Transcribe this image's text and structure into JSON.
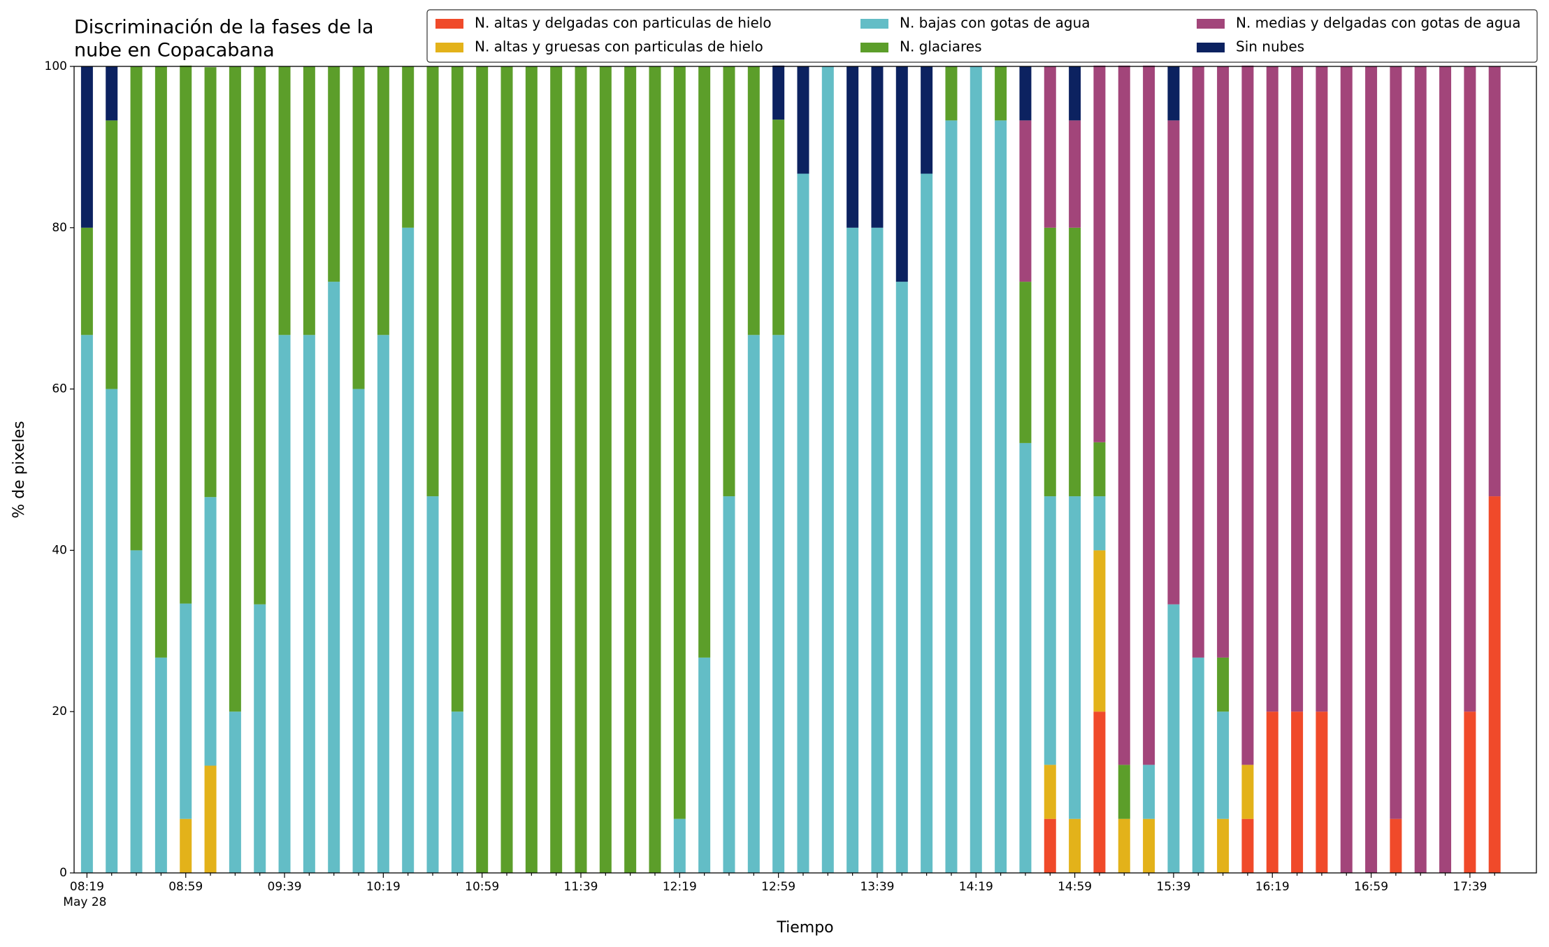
{
  "chart_data": {
    "type": "stacked_bar",
    "title": [
      "Discriminación de la fases de la",
      "nube en Copacabana"
    ],
    "x_label": "Tiempo",
    "y_label": "% de pixeles",
    "date_label": "May 28",
    "categories": [
      "08:19",
      null,
      null,
      null,
      "08:59",
      null,
      null,
      null,
      "09:39",
      null,
      null,
      null,
      "10:19",
      null,
      null,
      null,
      "10:59",
      null,
      null,
      null,
      "11:39",
      null,
      null,
      null,
      "12:19",
      null,
      null,
      null,
      "12:59",
      null,
      null,
      null,
      "13:39",
      null,
      null,
      null,
      "14:19",
      null,
      null,
      null,
      "14:59",
      null,
      null,
      null,
      "15:39",
      null,
      null,
      null,
      "16:19",
      null,
      null,
      null,
      "16:59",
      null,
      null,
      null,
      "17:39",
      null
    ],
    "ylim": [
      0,
      100
    ],
    "yticks": [
      0,
      20,
      40,
      60,
      80,
      100
    ],
    "legend": "top-right",
    "series": [
      {
        "name": "N. altas y delgadas con particulas de hielo",
        "color": "#f04a2a",
        "values": [
          0,
          0,
          0,
          0,
          0,
          0,
          0,
          0,
          0,
          0,
          0,
          0,
          0,
          0,
          0,
          0,
          0,
          0,
          0,
          0,
          0,
          0,
          0,
          0,
          0,
          0,
          0,
          0,
          0,
          0,
          0,
          0,
          0,
          0,
          0,
          0,
          0,
          0,
          0,
          6.7,
          0,
          20,
          0,
          0,
          0,
          0,
          0,
          6.7,
          20,
          20,
          20,
          0,
          0,
          6.7,
          0,
          0,
          20,
          46.7
        ]
      },
      {
        "name": "N. altas y gruesas con particulas de hielo",
        "color": "#e3b21a",
        "values": [
          0,
          0,
          0,
          0,
          6.7,
          13.3,
          0,
          0,
          0,
          0,
          0,
          0,
          0,
          0,
          0,
          0,
          0,
          0,
          0,
          0,
          0,
          0,
          0,
          0,
          0,
          0,
          0,
          0,
          0,
          0,
          0,
          0,
          0,
          0,
          0,
          0,
          0,
          0,
          0,
          6.7,
          6.7,
          20,
          6.7,
          6.7,
          0,
          0,
          6.7,
          6.7,
          0,
          0,
          0,
          0,
          0,
          0,
          0,
          0,
          0,
          0
        ]
      },
      {
        "name": "N. bajas con gotas de agua",
        "color": "#63bdc6",
        "values": [
          66.7,
          60,
          40,
          26.7,
          26.7,
          33.3,
          20,
          33.3,
          66.7,
          66.7,
          73.3,
          60,
          66.7,
          80,
          46.7,
          20,
          0,
          0,
          0,
          0,
          0,
          0,
          0,
          0,
          6.7,
          26.7,
          46.7,
          66.7,
          66.7,
          86.7,
          100,
          80,
          80,
          73.3,
          86.7,
          93.3,
          100,
          93.3,
          53.3,
          33.3,
          40,
          6.7,
          0,
          6.7,
          33.3,
          26.7,
          13.3,
          0,
          0,
          0,
          0,
          0,
          0,
          0,
          0,
          0,
          0,
          0
        ]
      },
      {
        "name": "N. glaciares",
        "color": "#5c9e2a",
        "values": [
          13.3,
          33.3,
          60,
          73.3,
          66.7,
          53.3,
          80,
          66.7,
          33.3,
          33.3,
          26.7,
          40,
          33.3,
          20,
          53.3,
          80,
          100,
          100,
          100,
          100,
          100,
          100,
          100,
          100,
          93.3,
          73.3,
          53.3,
          33.3,
          26.7,
          0,
          0,
          0,
          0,
          0,
          0,
          6.7,
          0,
          6.7,
          20,
          33.3,
          33.3,
          6.7,
          6.7,
          0,
          0,
          0,
          6.7,
          0,
          0,
          0,
          0,
          0,
          0,
          0,
          0,
          0,
          0,
          0
        ]
      },
      {
        "name": "N. medias y delgadas con gotas de agua",
        "color": "#a2457a",
        "values": [
          0,
          0,
          0,
          0,
          0,
          0,
          0,
          0,
          0,
          0,
          0,
          0,
          0,
          0,
          0,
          0,
          0,
          0,
          0,
          0,
          0,
          0,
          0,
          0,
          0,
          0,
          0,
          0,
          0,
          0,
          0,
          0,
          0,
          0,
          0,
          0,
          0,
          0,
          20,
          20,
          13.3,
          46.7,
          86.7,
          86.7,
          60,
          73.3,
          73.3,
          86.7,
          80,
          80,
          80,
          100,
          100,
          93.3,
          100,
          100,
          80,
          53.3
        ]
      },
      {
        "name": "Sin nubes",
        "color": "#0c2260",
        "values": [
          20,
          6.7,
          0,
          0,
          0,
          0,
          0,
          0,
          0,
          0,
          0,
          0,
          0,
          0,
          0,
          0,
          0,
          0,
          0,
          0,
          0,
          0,
          0,
          0,
          0,
          0,
          0,
          0,
          6.7,
          13.3,
          0,
          20,
          20,
          26.7,
          13.3,
          0,
          0,
          0,
          6.7,
          0,
          6.7,
          0,
          0,
          0,
          6.7,
          0,
          0,
          0,
          0,
          0,
          0,
          0,
          0,
          0,
          0,
          0,
          0,
          0
        ]
      }
    ]
  }
}
